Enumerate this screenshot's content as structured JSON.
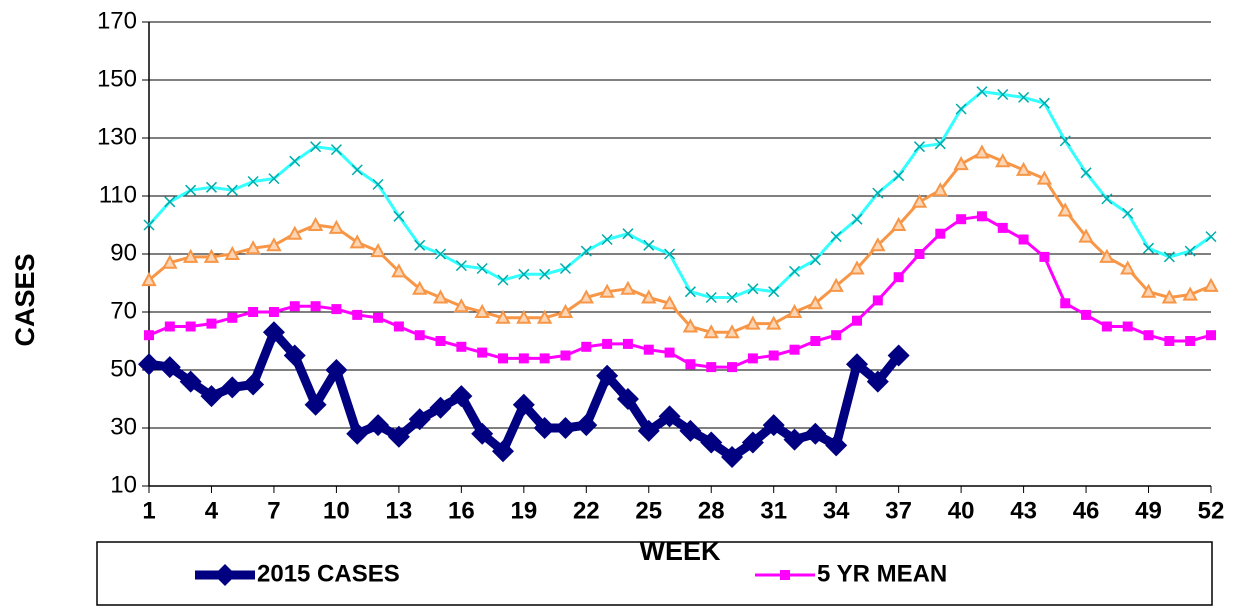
{
  "chart_data": {
    "type": "line",
    "x_label": "WEEK",
    "y_label": "CASES",
    "x": [
      1,
      2,
      3,
      4,
      5,
      6,
      7,
      8,
      9,
      10,
      11,
      12,
      13,
      14,
      15,
      16,
      17,
      18,
      19,
      20,
      21,
      22,
      23,
      24,
      25,
      26,
      27,
      28,
      29,
      30,
      31,
      32,
      33,
      34,
      35,
      36,
      37,
      38,
      39,
      40,
      41,
      42,
      43,
      44,
      45,
      46,
      47,
      48,
      49,
      50,
      51,
      52
    ],
    "xlim": [
      1,
      52
    ],
    "xticks": [
      1,
      4,
      7,
      10,
      13,
      16,
      19,
      22,
      25,
      28,
      31,
      34,
      37,
      40,
      43,
      46,
      49,
      52
    ],
    "ylim": [
      10,
      170
    ],
    "yticks": [
      10,
      30,
      50,
      70,
      90,
      110,
      130,
      150,
      170
    ],
    "grid": true,
    "legend": "bottom",
    "series": [
      {
        "color": "#33ffff",
        "marker": "x",
        "values": [
          100,
          108,
          112,
          113,
          112,
          115,
          116,
          122,
          127,
          126,
          119,
          114,
          103,
          93,
          90,
          86,
          85,
          81,
          83,
          83,
          85,
          91,
          95,
          97,
          93,
          90,
          77,
          75,
          75,
          78,
          77,
          84,
          88,
          96,
          102,
          111,
          117,
          127,
          128,
          140,
          146,
          145,
          144,
          142,
          129,
          118,
          109,
          104,
          92,
          89,
          91,
          96
        ]
      },
      {
        "color": "#f79646",
        "marker": "triangle",
        "values": [
          81,
          87,
          89,
          89,
          90,
          92,
          93,
          97,
          100,
          99,
          94,
          91,
          84,
          78,
          75,
          72,
          70,
          68,
          68,
          68,
          70,
          75,
          77,
          78,
          75,
          73,
          65,
          63,
          63,
          66,
          66,
          70,
          73,
          79,
          85,
          93,
          100,
          108,
          112,
          121,
          125,
          122,
          119,
          116,
          105,
          96,
          89,
          85,
          77,
          75,
          76,
          79
        ]
      },
      {
        "name": "5 YR MEAN",
        "color": "#ff00ff",
        "marker": "square",
        "values": [
          62,
          65,
          65,
          66,
          68,
          70,
          70,
          72,
          72,
          71,
          69,
          68,
          65,
          62,
          60,
          58,
          56,
          54,
          54,
          54,
          55,
          58,
          59,
          59,
          57,
          56,
          52,
          51,
          51,
          54,
          55,
          57,
          60,
          62,
          67,
          74,
          82,
          90,
          97,
          102,
          103,
          99,
          95,
          89,
          73,
          69,
          65,
          65,
          62,
          60,
          60,
          62
        ]
      },
      {
        "name": "2015 CASES",
        "color": "#000080",
        "marker": "diamond",
        "values": [
          52,
          51,
          46,
          41,
          44,
          45,
          63,
          55,
          38,
          50,
          28,
          31,
          27,
          33,
          37,
          41,
          28,
          22,
          38,
          30,
          30,
          31,
          48,
          40,
          29,
          34,
          29,
          25,
          20,
          25,
          31,
          26,
          28,
          24,
          52,
          46,
          55,
          null,
          null,
          null,
          null,
          null,
          null,
          null,
          null,
          null,
          null,
          null,
          null,
          null,
          null,
          null
        ]
      }
    ]
  }
}
